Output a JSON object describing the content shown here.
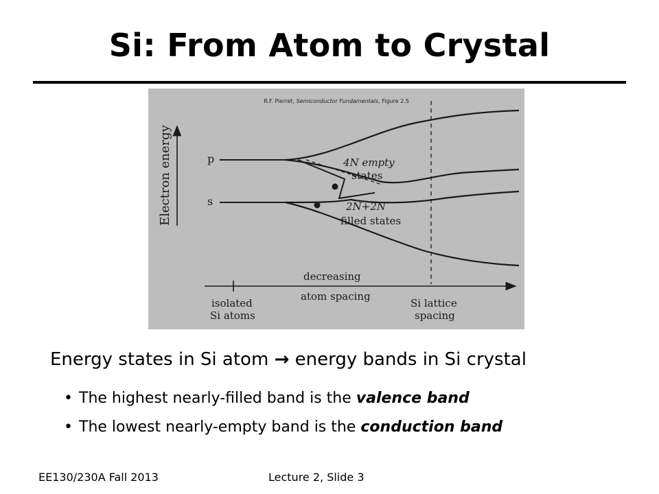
{
  "title": "Si: From Atom to Crystal",
  "figure": {
    "caption_prefix": "R.F. Pierret, ",
    "caption_title": "Semiconductor Fundamentals",
    "caption_suffix": ", Figure 2.5",
    "y_axis_label": "Electron energy",
    "level_p": "p",
    "level_s": "s",
    "empty_line1": "4N empty",
    "empty_line2": "states",
    "filled_line1": "2N+2N",
    "filled_line2": "filled states",
    "arrow_label_line1": "decreasing",
    "arrow_label_line2": "atom spacing",
    "isolated_line1": "isolated",
    "isolated_line2": "Si atoms",
    "lattice_line1": "Si lattice",
    "lattice_line2": "spacing"
  },
  "body": {
    "lead_before": "Energy states in Si atom ",
    "arrow": "→",
    "lead_after": " energy bands in Si crystal",
    "bullets": [
      {
        "before": "The highest nearly-filled band is the ",
        "emph": "valence band"
      },
      {
        "before": "The lowest nearly-empty band is the ",
        "emph": "conduction band"
      }
    ]
  },
  "footer": {
    "course": "EE130/230A Fall 2013",
    "slide": "Lecture 2, Slide 3"
  },
  "colors": {
    "figure_background": "#bdbdbd",
    "text": "#000000"
  }
}
